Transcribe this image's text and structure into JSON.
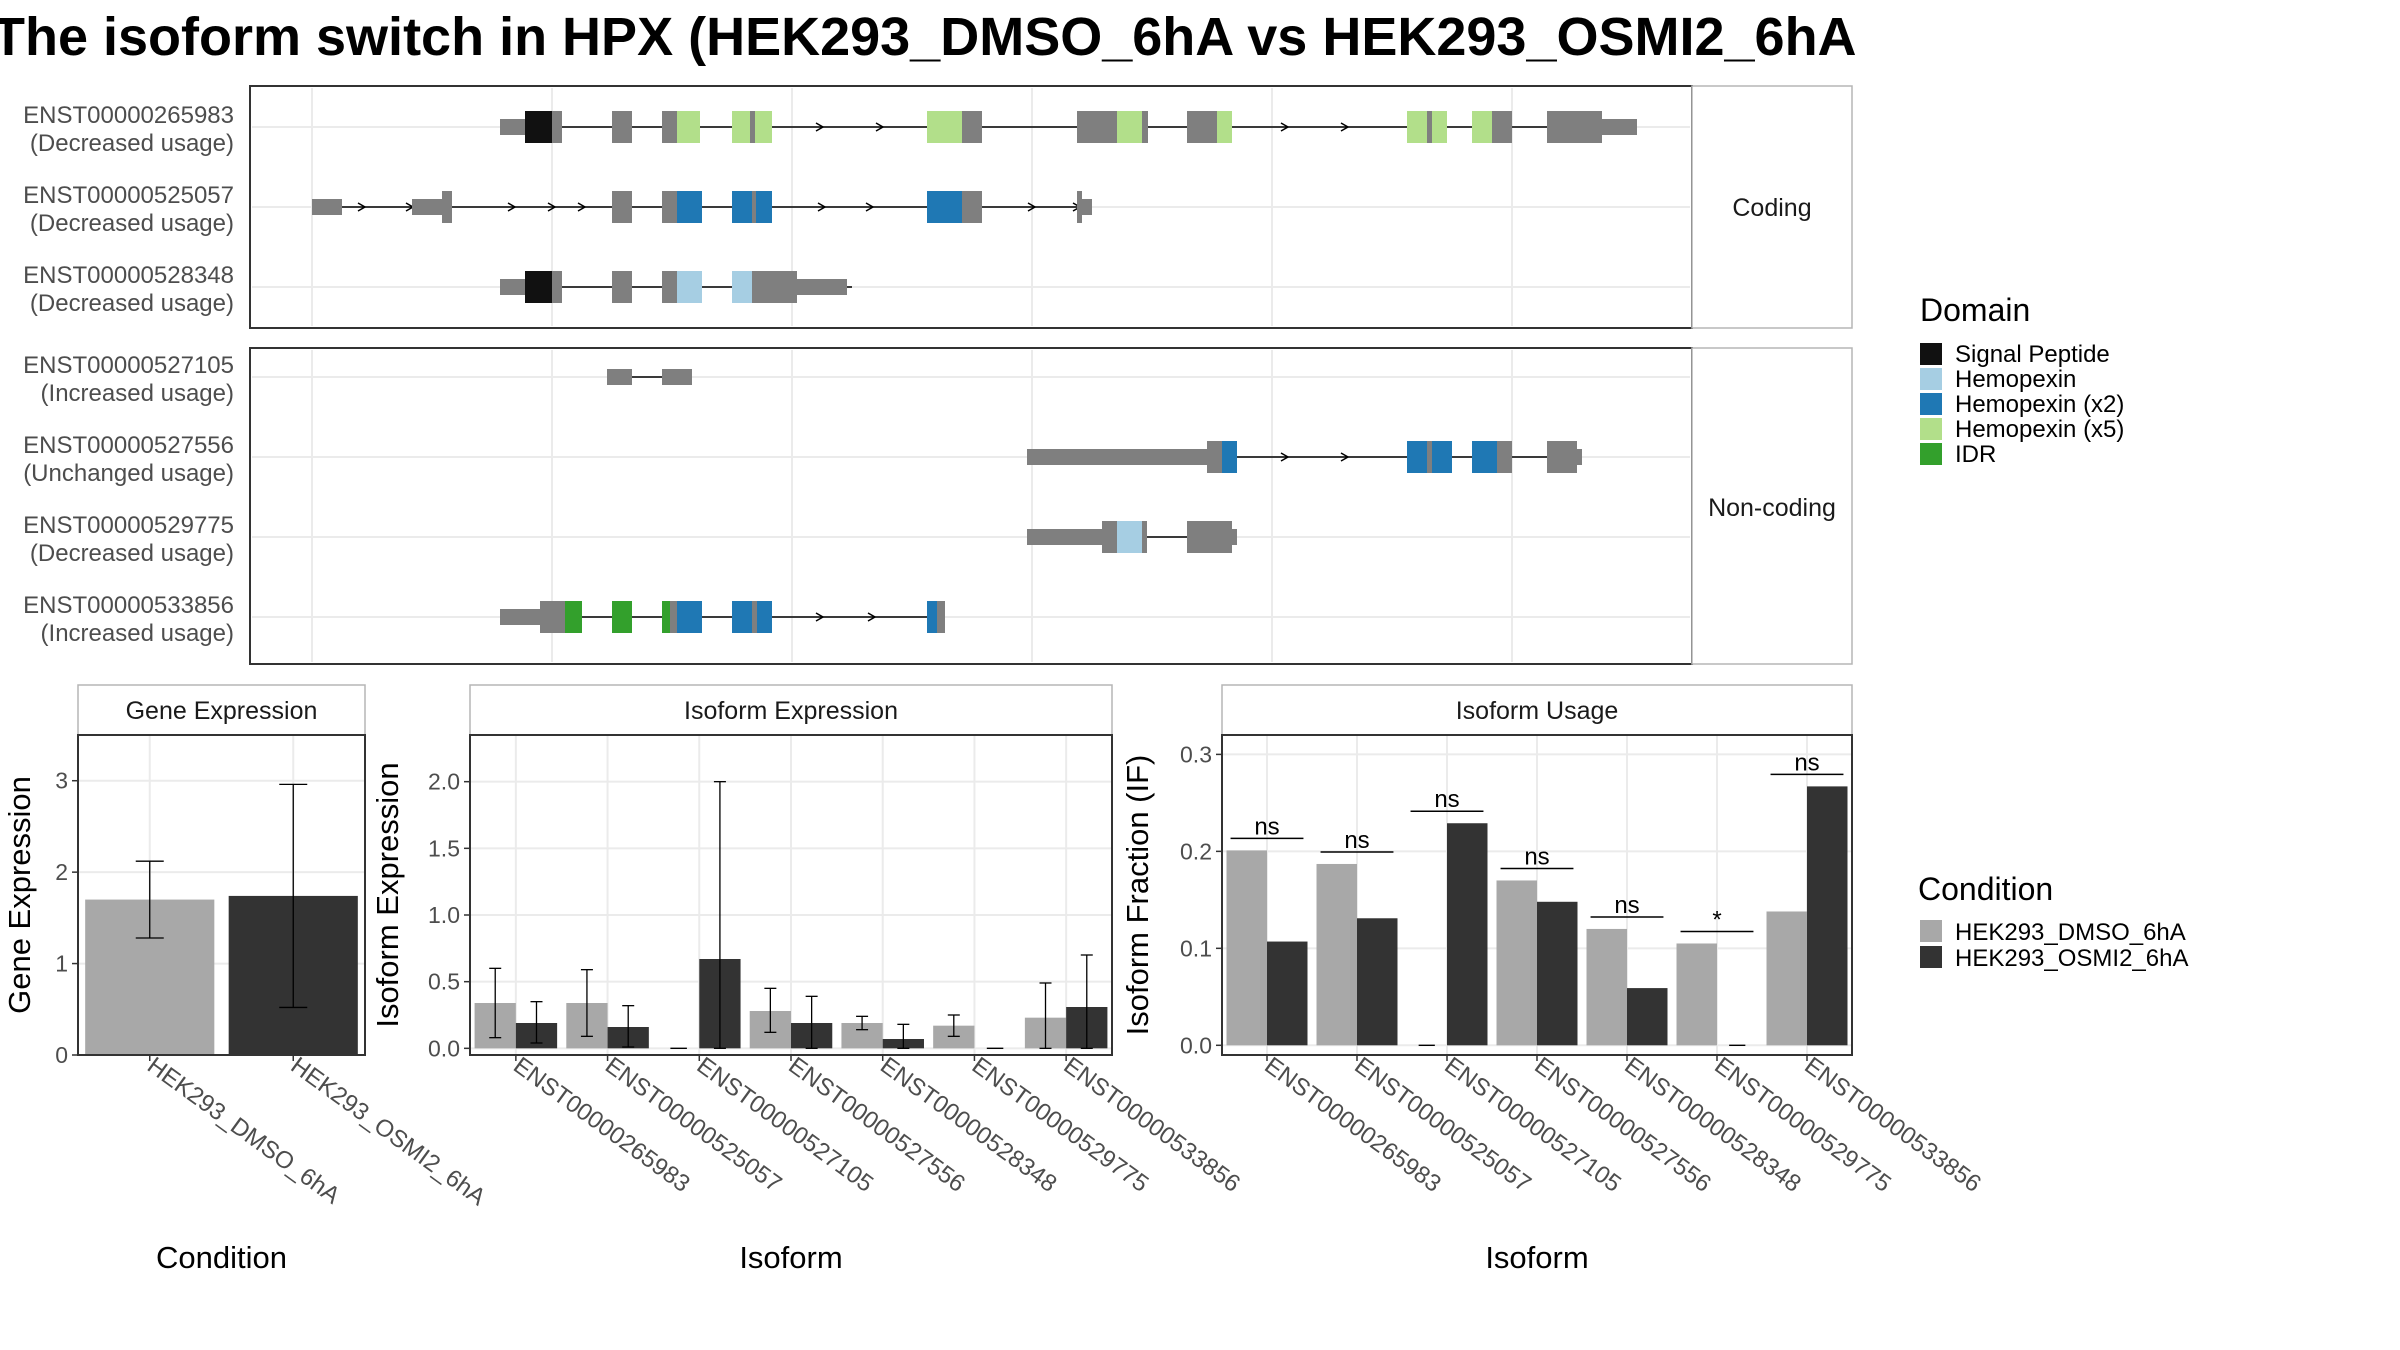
{
  "title": "The isoform switch in HPX (HEK293_DMSO_6hA vs HEK293_OSMI2_6hA",
  "structure": {
    "groups": [
      {
        "label": "Coding",
        "isoforms": [
          {
            "id": "ENST00000265983",
            "usage": "(Decreased usage)"
          },
          {
            "id": "ENST00000525057",
            "usage": "(Decreased usage)"
          },
          {
            "id": "ENST00000528348",
            "usage": "(Decreased usage)"
          }
        ]
      },
      {
        "label": "Non-coding",
        "isoforms": [
          {
            "id": "ENST00000527105",
            "usage": "(Increased usage)"
          },
          {
            "id": "ENST00000527556",
            "usage": "(Unchanged usage)"
          },
          {
            "id": "ENST00000529775",
            "usage": "(Decreased usage)"
          },
          {
            "id": "ENST00000533856",
            "usage": "(Increased usage)"
          }
        ]
      }
    ]
  },
  "domain_legend": {
    "title": "Domain",
    "items": [
      {
        "label": "Signal Peptide",
        "color": "#111111"
      },
      {
        "label": "Hemopexin",
        "color": "#a6cee3"
      },
      {
        "label": "Hemopexin (x2)",
        "color": "#1f78b4"
      },
      {
        "label": "Hemopexin (x5)",
        "color": "#b2df8a"
      },
      {
        "label": "IDR",
        "color": "#33a02c"
      }
    ]
  },
  "condition_legend": {
    "title": "Condition",
    "items": [
      {
        "label": "HEK293_DMSO_6hA",
        "color": "#a8a8a8"
      },
      {
        "label": "HEK293_OSMI2_6hA",
        "color": "#333333"
      }
    ]
  },
  "chart_data": [
    {
      "type": "bar",
      "title": "Gene Expression",
      "xlabel": "Condition",
      "ylabel": "Gene Expression",
      "ylim": [
        0,
        3.5
      ],
      "yticks": [
        0,
        1,
        2,
        3
      ],
      "categories": [
        "HEK293_DMSO_6hA",
        "HEK293_OSMI2_6hA"
      ],
      "values": [
        1.7,
        1.74
      ],
      "error_low": [
        1.28,
        0.52
      ],
      "error_high": [
        2.12,
        2.96
      ]
    },
    {
      "type": "bar",
      "title": "Isoform Expression",
      "xlabel": "Isoform",
      "ylabel": "Isoform Expression",
      "ylim": [
        -0.05,
        2.35
      ],
      "yticks": [
        "0.0",
        "0.5",
        "1.0",
        "1.5",
        "2.0"
      ],
      "categories": [
        "ENST00000265983",
        "ENST00000525057",
        "ENST00000527105",
        "ENST00000527556",
        "ENST00000528348",
        "ENST00000529775",
        "ENST00000533856"
      ],
      "series": [
        {
          "name": "HEK293_DMSO_6hA",
          "values": [
            0.34,
            0.34,
            0.0,
            0.28,
            0.19,
            0.17,
            0.23
          ],
          "error_low": [
            0.08,
            0.09,
            0.0,
            0.12,
            0.14,
            0.09,
            0.0
          ],
          "error_high": [
            0.6,
            0.59,
            0.0,
            0.45,
            0.24,
            0.25,
            0.49
          ]
        },
        {
          "name": "HEK293_OSMI2_6hA",
          "values": [
            0.19,
            0.16,
            0.67,
            0.19,
            0.07,
            0.0,
            0.31
          ],
          "error_low": [
            0.04,
            0.01,
            0.0,
            0.0,
            0.0,
            0.0,
            0.0
          ],
          "error_high": [
            0.35,
            0.32,
            2.0,
            0.39,
            0.18,
            0.0,
            0.7
          ]
        }
      ]
    },
    {
      "type": "bar",
      "title": "Isoform Usage",
      "xlabel": "Isoform",
      "ylabel": "Isoform Fraction (IF)",
      "ylim": [
        -0.01,
        0.32
      ],
      "yticks": [
        "0.0",
        "0.1",
        "0.2",
        "0.3"
      ],
      "categories": [
        "ENST00000265983",
        "ENST00000525057",
        "ENST00000527105",
        "ENST00000527556",
        "ENST00000528348",
        "ENST00000529775",
        "ENST00000533856"
      ],
      "series": [
        {
          "name": "HEK293_DMSO_6hA",
          "values": [
            0.201,
            0.187,
            0.0,
            0.17,
            0.12,
            0.105,
            0.138
          ]
        },
        {
          "name": "HEK293_OSMI2_6hA",
          "values": [
            0.107,
            0.131,
            0.229,
            0.148,
            0.059,
            0.0,
            0.267
          ]
        }
      ],
      "significance": [
        "ns",
        "ns",
        "ns",
        "ns",
        "ns",
        "*",
        "ns"
      ]
    }
  ]
}
